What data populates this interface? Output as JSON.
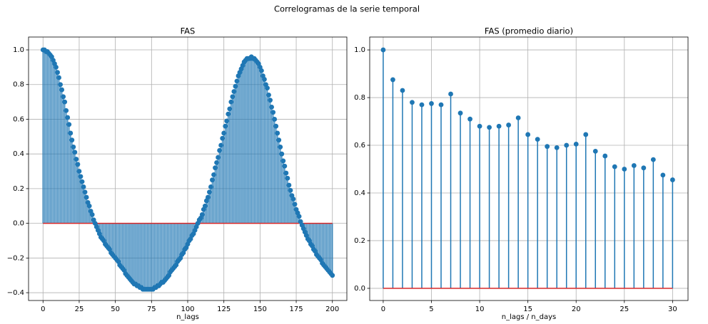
{
  "title": "Correlogramas de la serie temporal",
  "chart_data": [
    {
      "type": "stem",
      "title": "FAS",
      "xlabel": "n_lags",
      "color": "#1f77b4",
      "baseline_color": "#d62728",
      "grid": true,
      "x": [
        0,
        1,
        2,
        3,
        4,
        5,
        6,
        7,
        8,
        9,
        10,
        11,
        12,
        13,
        14,
        15,
        16,
        17,
        18,
        19,
        20,
        21,
        22,
        23,
        24,
        25,
        26,
        27,
        28,
        29,
        30,
        31,
        32,
        33,
        34,
        35,
        36,
        37,
        38,
        39,
        40,
        41,
        42,
        43,
        44,
        45,
        46,
        47,
        48,
        49,
        50,
        51,
        52,
        53,
        54,
        55,
        56,
        57,
        58,
        59,
        60,
        61,
        62,
        63,
        64,
        65,
        66,
        67,
        68,
        69,
        70,
        71,
        72,
        73,
        74,
        75,
        76,
        77,
        78,
        79,
        80,
        81,
        82,
        83,
        84,
        85,
        86,
        87,
        88,
        89,
        90,
        91,
        92,
        93,
        94,
        95,
        96,
        97,
        98,
        99,
        100,
        101,
        102,
        103,
        104,
        105,
        106,
        107,
        108,
        109,
        110,
        111,
        112,
        113,
        114,
        115,
        116,
        117,
        118,
        119,
        120,
        121,
        122,
        123,
        124,
        125,
        126,
        127,
        128,
        129,
        130,
        131,
        132,
        133,
        134,
        135,
        136,
        137,
        138,
        139,
        140,
        141,
        142,
        143,
        144,
        145,
        146,
        147,
        148,
        149,
        150,
        151,
        152,
        153,
        154,
        155,
        156,
        157,
        158,
        159,
        160,
        161,
        162,
        163,
        164,
        165,
        166,
        167,
        168,
        169,
        170,
        171,
        172,
        173,
        174,
        175,
        176,
        177,
        178,
        179,
        180,
        181,
        182,
        183,
        184,
        185,
        186,
        187,
        188,
        189,
        190,
        191,
        192,
        193,
        194,
        195,
        196,
        197,
        198,
        199,
        200
      ],
      "values": [
        1.0,
        1.0,
        0.99,
        0.99,
        0.98,
        0.97,
        0.96,
        0.94,
        0.92,
        0.9,
        0.87,
        0.84,
        0.8,
        0.77,
        0.73,
        0.7,
        0.65,
        0.61,
        0.57,
        0.52,
        0.48,
        0.44,
        0.41,
        0.37,
        0.34,
        0.3,
        0.27,
        0.24,
        0.21,
        0.18,
        0.15,
        0.12,
        0.1,
        0.07,
        0.05,
        0.02,
        0.0,
        -0.02,
        -0.04,
        -0.06,
        -0.08,
        -0.09,
        -0.1,
        -0.12,
        -0.13,
        -0.14,
        -0.15,
        -0.17,
        -0.18,
        -0.19,
        -0.2,
        -0.21,
        -0.22,
        -0.24,
        -0.25,
        -0.26,
        -0.27,
        -0.29,
        -0.3,
        -0.31,
        -0.32,
        -0.33,
        -0.34,
        -0.35,
        -0.35,
        -0.36,
        -0.36,
        -0.37,
        -0.37,
        -0.38,
        -0.38,
        -0.38,
        -0.38,
        -0.38,
        -0.38,
        -0.38,
        -0.38,
        -0.37,
        -0.37,
        -0.36,
        -0.36,
        -0.35,
        -0.34,
        -0.34,
        -0.33,
        -0.32,
        -0.31,
        -0.3,
        -0.28,
        -0.27,
        -0.26,
        -0.25,
        -0.24,
        -0.22,
        -0.21,
        -0.2,
        -0.18,
        -0.17,
        -0.15,
        -0.14,
        -0.12,
        -0.1,
        -0.09,
        -0.07,
        -0.06,
        -0.04,
        -0.02,
        0.0,
        0.02,
        0.03,
        0.05,
        0.08,
        0.1,
        0.13,
        0.15,
        0.18,
        0.21,
        0.25,
        0.28,
        0.32,
        0.35,
        0.38,
        0.42,
        0.45,
        0.49,
        0.52,
        0.56,
        0.59,
        0.63,
        0.66,
        0.7,
        0.73,
        0.76,
        0.79,
        0.82,
        0.85,
        0.87,
        0.89,
        0.91,
        0.93,
        0.94,
        0.95,
        0.95,
        0.95,
        0.96,
        0.95,
        0.95,
        0.94,
        0.93,
        0.92,
        0.9,
        0.88,
        0.85,
        0.83,
        0.8,
        0.78,
        0.74,
        0.71,
        0.67,
        0.64,
        0.6,
        0.56,
        0.52,
        0.48,
        0.44,
        0.4,
        0.36,
        0.33,
        0.29,
        0.26,
        0.22,
        0.19,
        0.16,
        0.14,
        0.11,
        0.08,
        0.06,
        0.04,
        0.01,
        -0.01,
        -0.03,
        -0.05,
        -0.07,
        -0.09,
        -0.1,
        -0.12,
        -0.13,
        -0.15,
        -0.16,
        -0.18,
        -0.19,
        -0.2,
        -0.21,
        -0.23,
        -0.24,
        -0.25,
        -0.26,
        -0.27,
        -0.28,
        -0.29,
        -0.3
      ],
      "xlim": [
        -10,
        210
      ],
      "xticks": [
        0,
        25,
        50,
        75,
        100,
        125,
        150,
        175,
        200
      ],
      "ylim": [
        -0.445,
        1.074
      ],
      "yticks": [
        {
          "value": -0.4,
          "label": "−0.4"
        },
        {
          "value": -0.2,
          "label": "−0.2"
        },
        {
          "value": 0.0,
          "label": "0.0"
        },
        0.2,
        0.4,
        0.6,
        0.8,
        {
          "value": 1.0,
          "label": "1.0"
        }
      ]
    },
    {
      "type": "stem",
      "title": "FAS (promedio diario)",
      "xlabel": "n_lags / n_days",
      "color": "#1f77b4",
      "baseline_color": "#d62728",
      "grid": true,
      "x": [
        0,
        1,
        2,
        3,
        4,
        5,
        6,
        7,
        8,
        9,
        10,
        11,
        12,
        13,
        14,
        15,
        16,
        17,
        18,
        19,
        20,
        21,
        22,
        23,
        24,
        25,
        26,
        27,
        28,
        29,
        30
      ],
      "values": [
        1.0,
        0.875,
        0.83,
        0.78,
        0.77,
        0.775,
        0.77,
        0.815,
        0.735,
        0.71,
        0.68,
        0.675,
        0.68,
        0.685,
        0.715,
        0.645,
        0.625,
        0.595,
        0.59,
        0.6,
        0.605,
        0.645,
        0.575,
        0.555,
        0.51,
        0.5,
        0.515,
        0.505,
        0.54,
        0.475,
        0.455
      ],
      "xlim": [
        -1.4,
        31.6
      ],
      "xticks": [
        0,
        5,
        10,
        15,
        20,
        25,
        30
      ],
      "ylim": [
        -0.051,
        1.054
      ],
      "yticks": [
        {
          "value": 0.0,
          "label": "0.0"
        },
        0.2,
        0.4,
        0.6,
        0.8,
        {
          "value": 1.0,
          "label": "1.0"
        }
      ]
    }
  ]
}
